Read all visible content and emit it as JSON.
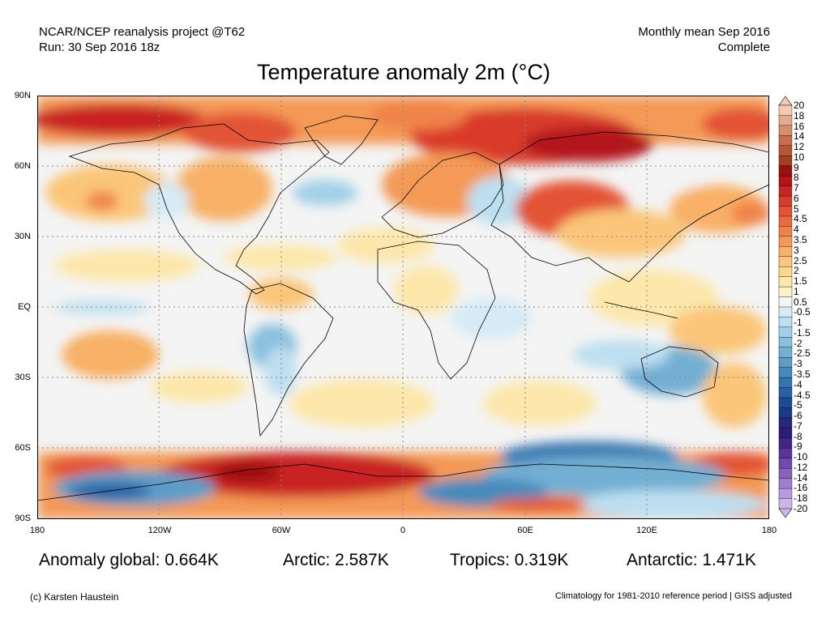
{
  "header": {
    "left_line1": "NCAR/NCEP reanalysis project @T62",
    "left_line2": "Run: 30 Sep 2016 18z",
    "right_line1": "Monthly mean Sep 2016",
    "right_line2": "Complete"
  },
  "title": "Temperature anomaly 2m (°C)",
  "axes": {
    "lat_labels": [
      "90N",
      "60N",
      "30N",
      "EQ",
      "30S",
      "60S",
      "90S"
    ],
    "lon_labels": [
      "180",
      "120W",
      "60W",
      "0",
      "60E",
      "120E",
      "180"
    ]
  },
  "colorbar": {
    "labels": [
      "20",
      "18",
      "16",
      "14",
      "12",
      "10",
      "9",
      "8",
      "7",
      "6",
      "5",
      "4.5",
      "4",
      "3.5",
      "3",
      "2.5",
      "2",
      "1.5",
      "1",
      "0.5",
      "-0.5",
      "-1",
      "-1.5",
      "-2",
      "-2.5",
      "-3",
      "-3.5",
      "-4",
      "-4.5",
      "-5",
      "-6",
      "-7",
      "-8",
      "-9",
      "-10",
      "-12",
      "-14",
      "-16",
      "-18",
      "-20"
    ],
    "colors": [
      "#f3c9b0",
      "#e6ab8d",
      "#d88c6c",
      "#c96e4f",
      "#b85536",
      "#a33e22",
      "#9b0f0f",
      "#b3141a",
      "#c92323",
      "#d93a2c",
      "#e35235",
      "#eb6a3e",
      "#f0834a",
      "#f49a57",
      "#f8b166",
      "#fbc679",
      "#fdd88f",
      "#fde7aa",
      "#fef2c7",
      "#f4f4f4",
      "#d6ebf6",
      "#bddff0",
      "#a3d0e8",
      "#8ac0de",
      "#72afd3",
      "#5c9dc8",
      "#468abc",
      "#3676b0",
      "#2761a2",
      "#1f4b94",
      "#1c3a87",
      "#22287a",
      "#2e1c78",
      "#45248a",
      "#5c359c",
      "#7249ad",
      "#8862bf",
      "#9f7dcf",
      "#b699de",
      "#ccb6ec"
    ]
  },
  "stats": {
    "global": "Anomaly global: 0.664K",
    "arctic": "Arctic: 2.587K",
    "tropics": "Tropics: 0.319K",
    "antarctic": "Antarctic: 1.471K"
  },
  "footer": {
    "credit": "(c) Karsten Haustein",
    "note": "Climatology for 1981-2010 reference period | GISS adjusted"
  }
}
